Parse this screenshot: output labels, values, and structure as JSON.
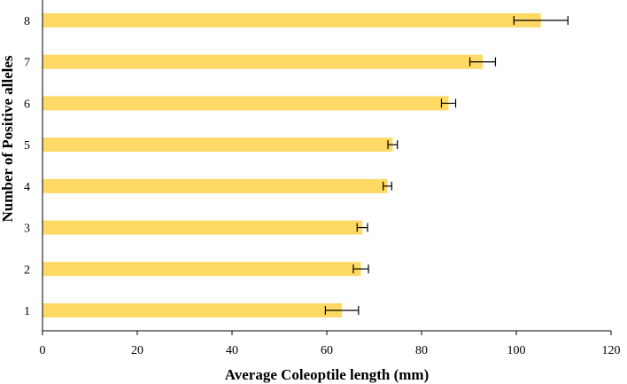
{
  "chart_data": {
    "type": "bar",
    "orientation": "horizontal",
    "title": "",
    "xlabel": "Average Coleoptile length (mm)",
    "ylabel": "Number of Positive alleles",
    "categories": [
      "1",
      "2",
      "3",
      "4",
      "5",
      "6",
      "7",
      "8"
    ],
    "values": [
      63.2,
      67.2,
      67.5,
      72.8,
      73.9,
      85.7,
      92.9,
      105.2
    ],
    "errors": [
      3.5,
      1.6,
      1.1,
      0.9,
      1.0,
      1.5,
      2.7,
      5.7
    ],
    "xlim": [
      0,
      120
    ],
    "xticks": [
      0,
      20,
      40,
      60,
      80,
      100,
      120
    ],
    "grid": false,
    "legend": "none",
    "bar_color": "#ffd966",
    "error_bar_color": "#000000"
  }
}
